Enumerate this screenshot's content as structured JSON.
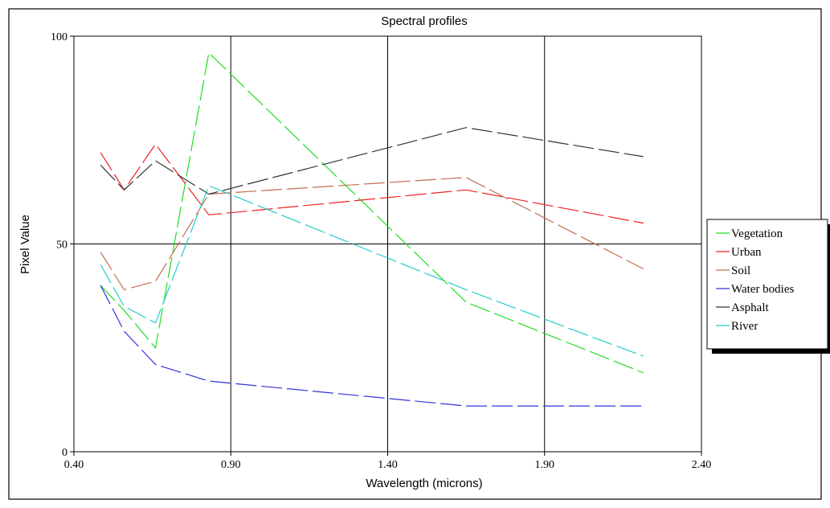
{
  "chart_data": {
    "type": "line",
    "title": "Spectral profiles",
    "xlabel": "Wavelength (microns)",
    "ylabel": "Pixel Value",
    "xlim": [
      0.4,
      2.4
    ],
    "ylim": [
      0,
      100
    ],
    "x_ticks": [
      "0.40",
      "0.90",
      "1.40",
      "1.90",
      "2.40"
    ],
    "y_ticks": [
      "0",
      "50",
      "100"
    ],
    "grid": true,
    "legend_position": "right",
    "x": [
      0.485,
      0.56,
      0.66,
      0.83,
      1.65,
      2.215
    ],
    "series": [
      {
        "name": "Vegetation",
        "color": "#22dd22",
        "values": [
          40,
          34,
          25,
          96,
          36,
          19
        ]
      },
      {
        "name": "Urban",
        "color": "#ee2222",
        "values": [
          72,
          63,
          74,
          57,
          63,
          55
        ]
      },
      {
        "name": "Soil",
        "color": "#c07050",
        "values": [
          48,
          39,
          41,
          62,
          66,
          44
        ]
      },
      {
        "name": "Water bodies",
        "color": "#3333dd",
        "values": [
          40,
          29,
          21,
          17,
          11,
          11
        ]
      },
      {
        "name": "Asphalt",
        "color": "#333333",
        "values": [
          69,
          63,
          70,
          62,
          78,
          71
        ]
      },
      {
        "name": "River",
        "color": "#22cccc",
        "values": [
          45,
          35,
          31,
          64,
          39,
          23
        ]
      }
    ]
  }
}
